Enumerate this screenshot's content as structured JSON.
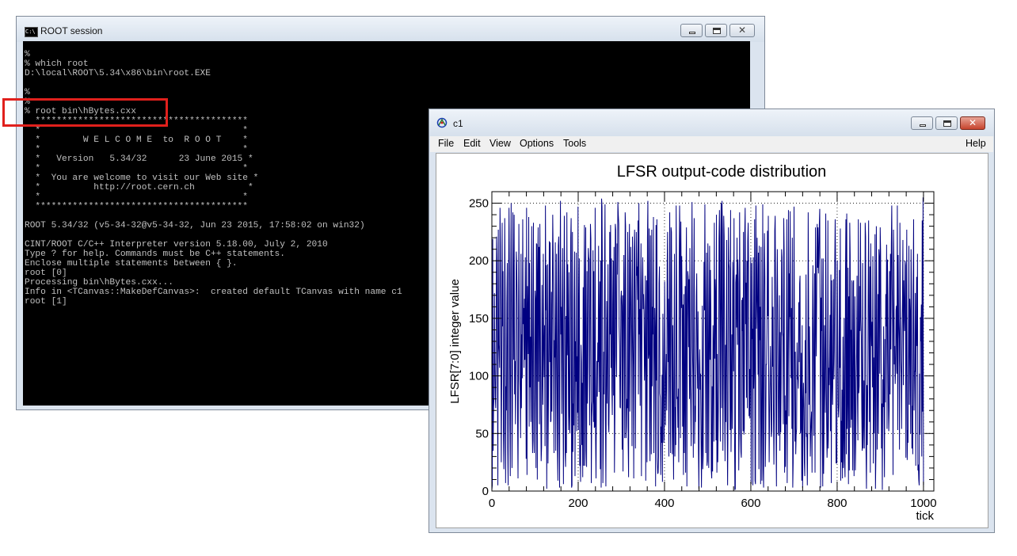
{
  "console_window": {
    "title": "ROOT session",
    "icon": "console-icon",
    "icon_text": "C:\\",
    "lines": [
      "%",
      "% which root",
      "D:\\local\\ROOT\\5.34\\x86\\bin\\root.EXE",
      "",
      "%",
      "%",
      "% root bin\\hBytes.cxx",
      "  ****************************************",
      "  *                                      *",
      "  *        W E L C O M E  to  R O O T    *",
      "  *                                      *",
      "  *   Version   5.34/32      23 June 2015 *",
      "  *                                      *",
      "  *  You are welcome to visit our Web site *",
      "  *          http://root.cern.ch          *",
      "  *                                      *",
      "  ****************************************",
      "",
      "ROOT 5.34/32 (v5-34-32@v5-34-32, Jun 23 2015, 17:58:02 on win32)",
      "",
      "CINT/ROOT C/C++ Interpreter version 5.18.00, July 2, 2010",
      "Type ? for help. Commands must be C++ statements.",
      "Enclose multiple statements between { }.",
      "root [0]",
      "Processing bin\\hBytes.cxx...",
      "Info in <TCanvas::MakeDefCanvas>:  created default TCanvas with name c1",
      "root [1]"
    ]
  },
  "canvas_window": {
    "title": "c1",
    "icon": "root-icon",
    "menu": {
      "file": "File",
      "edit": "Edit",
      "view": "View",
      "options": "Options",
      "tools": "Tools",
      "help": "Help"
    }
  },
  "window_controls": {
    "minimize": "minimize-icon",
    "maximize": "maximize-icon",
    "close": "close-icon"
  },
  "colors": {
    "line": "#000080",
    "highlight": "#e0201c",
    "console_bg": "#000000",
    "console_text": "#c0c0c0"
  },
  "chart_data": {
    "type": "line",
    "title": "LFSR output-code distribution",
    "xlabel": "tick",
    "ylabel": "LFSR[7:0] integer value",
    "xlim": [
      0,
      1024
    ],
    "ylim": [
      0,
      260
    ],
    "xticks": [
      "0",
      "200",
      "400",
      "600",
      "800",
      "1000"
    ],
    "yticks": [
      "0",
      "50",
      "100",
      "150",
      "200",
      "250"
    ],
    "grid": true,
    "x_start": 0,
    "x_end": 1000,
    "values": [
      1,
      5,
      219,
      35,
      73,
      82,
      172,
      106,
      81,
      72,
      136,
      221,
      198,
      97,
      5,
      227,
      127,
      121,
      107,
      246,
      213,
      121,
      25,
      102,
      233,
      143,
      191,
      55,
      19,
      58,
      237,
      172,
      7,
      91,
      70,
      163,
      198,
      37,
      5,
      182,
      246,
      185,
      57,
      13,
      180,
      250,
      141,
      20,
      72,
      242,
      171,
      114,
      240,
      84,
      113,
      58,
      110,
      208,
      197,
      162,
      62,
      11,
      106,
      232,
      154,
      98,
      87,
      46,
      206,
      72,
      136,
      98,
      236,
      145,
      159,
      107,
      167,
      114,
      203,
      139,
      28,
      246,
      14,
      178,
      149,
      119,
      238,
      56,
      198,
      90,
      134,
      60,
      143,
      230,
      65,
      33,
      168,
      233,
      44,
      33,
      94,
      174,
      166,
      20,
      215,
      214,
      10,
      188,
      229,
      95,
      212,
      58,
      232,
      166,
      74,
      26,
      38,
      179,
      103,
      75,
      206,
      130,
      99,
      144,
      39,
      248,
      157,
      196,
      2,
      100,
      197,
      24,
      76,
      148,
      217,
      112,
      216,
      60,
      61,
      173,
      69,
      165,
      240,
      205,
      119,
      33,
      131,
      116,
      216,
      35,
      102,
      206,
      132,
      34,
      9,
      213,
      221,
      54,
      3,
      175,
      252,
      136,
      160,
      67,
      152,
      211,
      84,
      6,
      151,
      239,
      174,
      32,
      21,
      152,
      33,
      242,
      118,
      197,
      130,
      53,
      190,
      67,
      50,
      128,
      220,
      237,
      3,
      5,
      225,
      34,
      76,
      57,
      165,
      208,
      13,
      130,
      95,
      207,
      52,
      117,
      68,
      247,
      53,
      149,
      202,
      22,
      40,
      8,
      127,
      112,
      40,
      94,
      12,
      177,
      22,
      175,
      231,
      22,
      116,
      229,
      35,
      21,
      191,
      76,
      108,
      211,
      203,
      201,
      57,
      133,
      232,
      219,
      7,
      64,
      75,
      78,
      209,
      60,
      191,
      55,
      56,
      246,
      45,
      11,
      77,
      113,
      82,
      129,
      112,
      213,
      86,
      145,
      182,
      19,
      200,
      3,
      254,
      247,
      178,
      7,
      44,
      121,
      84,
      197,
      249,
      61,
      4,
      99,
      165,
      76,
      133,
      197,
      58,
      51,
      88,
      225,
      136,
      231,
      107,
      202,
      89,
      66,
      162,
      200,
      83,
      212,
      16,
      66,
      232,
      227,
      117,
      99,
      215,
      188,
      251,
      240,
      232,
      143,
      126,
      73,
      72,
      167,
      174,
      161,
      36,
      170,
      17,
      151,
      205,
      139,
      46,
      242,
      230,
      46,
      56,
      80,
      72,
      225,
      42,
      12,
      196,
      232,
      69,
      126,
      212,
      174,
      131,
      39,
      221,
      141,
      108,
      11,
      210,
      227,
      163,
      37,
      127,
      225,
      187,
      195,
      166,
      235,
      84,
      250,
      136,
      158,
      74,
      176,
      215,
      13,
      125,
      181,
      203,
      158,
      171,
      154,
      96,
      118,
      187,
      9,
      109,
      183,
      25,
      220,
      252,
      115,
      120,
      228,
      55,
      26,
      222,
      94,
      32,
      227,
      91,
      160,
      136,
      238,
      33,
      106,
      159,
      136,
      4,
      231,
      96,
      236,
      27,
      15,
      16,
      30,
      180,
      195,
      85,
      81,
      14,
      56,
      42,
      101,
      8,
      154,
      110,
      42,
      46,
      182,
      123,
      57,
      95,
      119,
      70,
      196,
      225,
      112,
      167,
      30,
      140,
      242,
      90,
      33,
      229,
      225,
      133,
      32,
      144,
      57,
      10,
      118,
      206,
      30,
      73,
      40,
      248,
      179,
      80,
      82,
      55,
      89,
      25,
      195,
      248,
      214,
      46,
      234,
      159,
      204,
      158,
      56,
      162,
      14,
      171,
      33,
      80,
      178,
      16,
      186,
      229,
      4,
      146,
      191,
      186,
      125,
      184,
      80,
      211,
      92,
      75,
      39,
      173,
      251,
      125,
      101,
      29,
      174,
      237,
      41,
      74,
      60,
      103,
      170,
      189,
      115,
      89,
      156,
      36,
      2,
      108,
      123,
      88,
      102,
      48,
      3,
      44,
      161,
      19,
      31,
      142,
      199,
      157,
      249,
      146,
      33,
      164,
      207,
      22,
      26,
      215,
      156,
      20,
      121,
      213,
      114,
      192,
      154,
      18,
      11,
      91,
      17,
      144,
      120,
      43,
      233,
      115,
      184,
      170,
      44,
      240,
      16,
      119,
      25,
      54,
      97,
      219,
      244,
      145,
      43,
      220,
      250,
      72,
      252,
      227,
      35,
      98,
      239,
      221,
      80,
      26,
      127,
      60,
      145,
      218,
      60,
      5,
      64,
      229,
      198,
      193,
      109,
      53,
      244,
      34,
      77,
      136,
      54,
      199,
      172,
      104,
      237,
      61,
      1,
      2,
      181,
      188,
      142,
      220,
      127,
      201,
      181,
      18,
      54,
      242,
      170,
      55,
      34,
      29,
      166,
      139,
      168,
      52,
      225,
      49,
      54,
      224,
      246,
      145,
      181,
      81,
      200,
      72,
      217,
      233,
      191,
      65,
      106,
      63,
      104,
      203,
      6,
      198,
      132,
      141,
      5,
      203,
      89,
      110,
      236,
      9,
      6,
      248,
      141,
      166,
      220,
      156,
      101,
      207,
      19,
      213,
      131,
      160,
      6,
      212,
      71,
      9,
      91,
      249,
      19,
      3,
      172,
      224,
      186,
      21,
      51,
      110,
      110,
      142,
      226,
      152,
      239,
      85,
      25,
      68,
      97,
      126,
      80,
      47,
      52,
      186,
      108,
      160,
      70,
      23,
      71,
      226,
      239,
      166,
      51,
      4,
      167,
      210,
      149,
      51,
      48,
      111,
      170,
      35,
      138,
      51,
      93,
      210,
      203,
      138,
      134,
      58,
      237,
      207,
      16,
      83,
      21,
      70,
      58,
      236,
      7,
      89,
      159,
      244,
      65,
      189,
      151,
      243,
      138,
      98,
      159,
      54,
      220,
      3,
      25,
      112,
      247,
      131,
      43,
      121,
      32,
      49,
      54,
      129,
      97,
      99,
      89,
      164,
      112,
      180,
      187,
      50,
      55,
      120,
      9,
      144,
      3,
      72,
      94,
      72,
      25,
      13,
      131,
      85,
      188,
      47,
      50,
      5,
      52,
      242,
      164,
      75,
      143,
      103,
      30,
      51,
      62,
      69,
      16,
      139,
      196,
      124,
      48,
      127,
      189,
      16,
      229,
      155,
      117,
      188,
      232,
      194,
      229,
      189,
      204,
      232,
      245,
      135,
      3,
      168,
      139,
      202,
      50,
      4,
      202,
      15,
      56,
      144,
      96,
      68,
      241,
      124,
      61,
      29,
      44,
      235,
      37,
      107,
      92,
      118,
      153,
      52,
      188,
      7,
      183,
      98,
      75,
      111,
      184,
      97,
      122,
      198,
      236,
      195,
      24,
      36,
      24,
      200,
      134,
      75,
      64,
      75,
      192,
      107,
      228,
      9,
      61,
      25,
      88,
      11,
      134,
      20,
      47,
      150,
      26,
      12,
      187,
      236,
      32,
      241,
      54,
      83,
      194,
      6,
      169,
      18,
      233,
      205,
      55,
      140,
      62,
      183,
      73,
      18,
      181,
      183,
      13,
      102,
      169,
      18,
      41,
      95,
      121,
      187,
      82,
      44,
      236,
      85,
      91,
      178,
      139,
      233,
      149,
      135,
      70,
      35,
      198,
      37,
      60,
      96,
      37,
      99,
      233,
      221,
      34,
      2,
      92,
      40,
      86,
      173,
      235,
      130,
      60,
      195,
      16,
      215,
      144,
      126,
      147,
      90,
      204,
      24,
      116,
      50,
      93,
      223,
      2,
      31,
      230,
      170,
      36,
      90,
      171,
      50,
      210,
      203,
      102,
      229,
      208,
      125,
      37,
      76,
      1,
      97,
      73,
      143,
      60,
      12,
      132,
      77,
      171,
      143,
      214,
      54,
      201,
      167,
      81,
      52,
      70,
      191,
      84,
      206,
      123,
      215,
      248,
      177,
      143,
      14,
      227,
      195,
      110,
      126,
      93,
      106,
      157,
      161,
      102,
      248,
      53,
      205,
      147,
      132,
      36,
      233,
      158,
      113,
      101,
      54,
      139,
      167,
      218,
      92,
      183,
      157,
      139,
      200,
      196,
      29,
      142,
      227,
      27,
      53,
      42,
      131,
      213,
      75,
      167,
      153,
      50,
      210,
      176,
      37,
      74,
      32,
      173,
      236,
      70,
      104,
      104,
      172,
      22,
      130,
      186,
      126,
      206,
      18,
      23,
      10,
      5,
      102,
      49,
      151,
      130,
      162,
      30,
      235,
      69,
      255,
      5
    ]
  }
}
